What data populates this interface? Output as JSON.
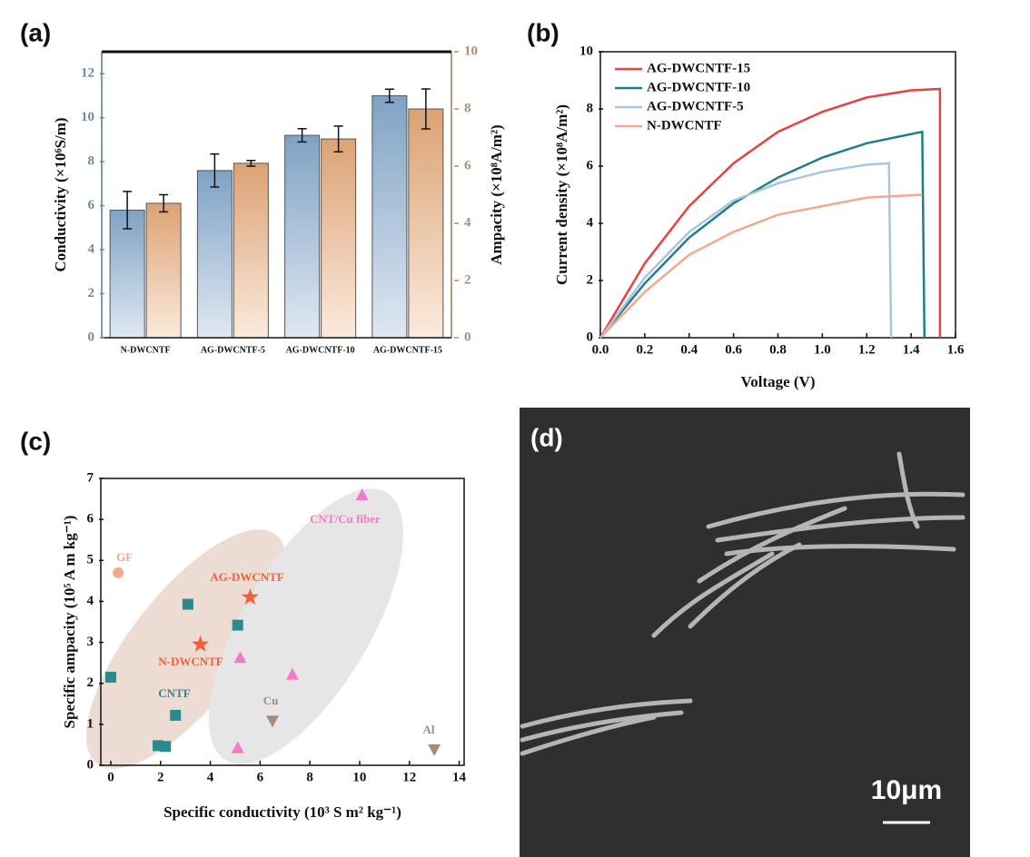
{
  "chart_data": [
    {
      "type": "bar",
      "label": "(a)",
      "categories": [
        "N-DWCNTF",
        "AG-DWCNTF-5",
        "AG-DWCNTF-10",
        "AG-DWCNTF-15"
      ],
      "ylabel": "Conductivity (×10⁶S/m)",
      "y2label": "Ampacity (×10⁸A/m²)",
      "ylim": [
        0,
        13
      ],
      "yticks": [
        0,
        2,
        4,
        6,
        8,
        10,
        12
      ],
      "y2lim": [
        0,
        10
      ],
      "y2ticks": [
        0,
        2,
        4,
        6,
        8,
        10
      ],
      "series": [
        {
          "name": "Conductivity",
          "color": "#7fa2c4",
          "values": [
            5.8,
            7.6,
            9.2,
            11.0
          ],
          "errors": [
            0.85,
            0.75,
            0.3,
            0.3
          ]
        },
        {
          "name": "Ampacity",
          "color": "#dba274",
          "axis": "y2",
          "values": [
            4.7,
            6.1,
            6.95,
            8.0
          ],
          "errors": [
            0.3,
            0.1,
            0.45,
            0.7
          ]
        }
      ]
    },
    {
      "type": "line",
      "label": "(b)",
      "xlabel": "Voltage (V)",
      "ylabel": "Current density (×10⁸A/m²)",
      "xlim": [
        0,
        1.6
      ],
      "xticks": [
        {
          "value": 0,
          "label": "0.0"
        },
        0.2,
        0.4,
        0.6,
        0.8,
        {
          "value": 1,
          "label": "1.0"
        },
        1.2,
        1.4,
        1.6
      ],
      "ylim": [
        0,
        10
      ],
      "yticks": [
        0,
        2,
        4,
        6,
        8,
        10
      ],
      "legend": "upper left",
      "series": [
        {
          "name": "AG-DWCNTF-15",
          "color": "#e8423f",
          "x": [
            0,
            0.2,
            0.4,
            0.6,
            0.8,
            1.0,
            1.2,
            1.4,
            1.53,
            1.53
          ],
          "values": [
            0,
            2.6,
            4.6,
            6.1,
            7.2,
            7.9,
            8.4,
            8.65,
            8.7,
            0
          ]
        },
        {
          "name": "AG-DWCNTF-10",
          "color": "#1f7f86",
          "x": [
            0,
            0.2,
            0.4,
            0.6,
            0.8,
            1.0,
            1.2,
            1.45,
            1.46
          ],
          "values": [
            0,
            1.9,
            3.5,
            4.7,
            5.6,
            6.3,
            6.8,
            7.2,
            0
          ]
        },
        {
          "name": "AG-DWCNTF-5",
          "color": "#a9c6e0",
          "x": [
            0,
            0.2,
            0.4,
            0.6,
            0.8,
            1.0,
            1.2,
            1.3,
            1.31
          ],
          "values": [
            0,
            2.1,
            3.7,
            4.8,
            5.4,
            5.8,
            6.05,
            6.1,
            0
          ]
        },
        {
          "name": "N-DWCNTF",
          "color": "#f4a98a",
          "x": [
            0,
            0.2,
            0.4,
            0.6,
            0.8,
            1.0,
            1.2,
            1.45
          ],
          "values": [
            0,
            1.6,
            2.9,
            3.7,
            4.3,
            4.6,
            4.9,
            5.0
          ]
        }
      ]
    },
    {
      "type": "scatter",
      "label": "(c)",
      "xlabel": "Specific conductivity (10³ S m² kg⁻¹)",
      "ylabel": "Specific ampacity (10⁵ A m kg⁻¹)",
      "xlim": [
        -0.4,
        14.2
      ],
      "xticks": [
        0,
        2,
        4,
        6,
        8,
        10,
        12,
        14
      ],
      "ylim": [
        0,
        7
      ],
      "yticks": [
        0,
        1,
        2,
        3,
        4,
        5,
        6,
        7
      ],
      "series": [
        {
          "name": "CNTF",
          "color": "#2a8a8e",
          "marker": "s",
          "x": [
            0,
            3.1,
            5.1,
            2.6,
            1.9,
            2.2
          ],
          "values": [
            2.15,
            3.93,
            3.42,
            1.22,
            0.48,
            0.46
          ]
        },
        {
          "name": "CNT/Cu fiber",
          "color": "#f27ac8",
          "marker": "^",
          "x": [
            10.1,
            5.2,
            7.3,
            5.1
          ],
          "values": [
            6.6,
            2.63,
            2.22,
            0.43
          ]
        },
        {
          "name": "GF",
          "color": "#f5a88a",
          "marker": "o",
          "x": [
            0.3
          ],
          "values": [
            4.7
          ]
        },
        {
          "name": "AG-DWCNTF",
          "color": "#f2603a",
          "marker": "*",
          "x": [
            5.6
          ],
          "values": [
            4.1
          ]
        },
        {
          "name": "N-DWCNTF",
          "color": "#f2603a",
          "marker": "*",
          "x": [
            3.6
          ],
          "values": [
            2.95
          ]
        },
        {
          "name": "Cu",
          "color": "#a38d7a",
          "marker": "v",
          "x": [
            6.5
          ],
          "values": [
            1.08
          ]
        },
        {
          "name": "Al",
          "color": "#a38d7a",
          "marker": "v",
          "x": [
            13
          ],
          "values": [
            0.38
          ]
        }
      ]
    },
    {
      "type": "image",
      "label": "(d)",
      "scale_bar": "10μm"
    }
  ]
}
